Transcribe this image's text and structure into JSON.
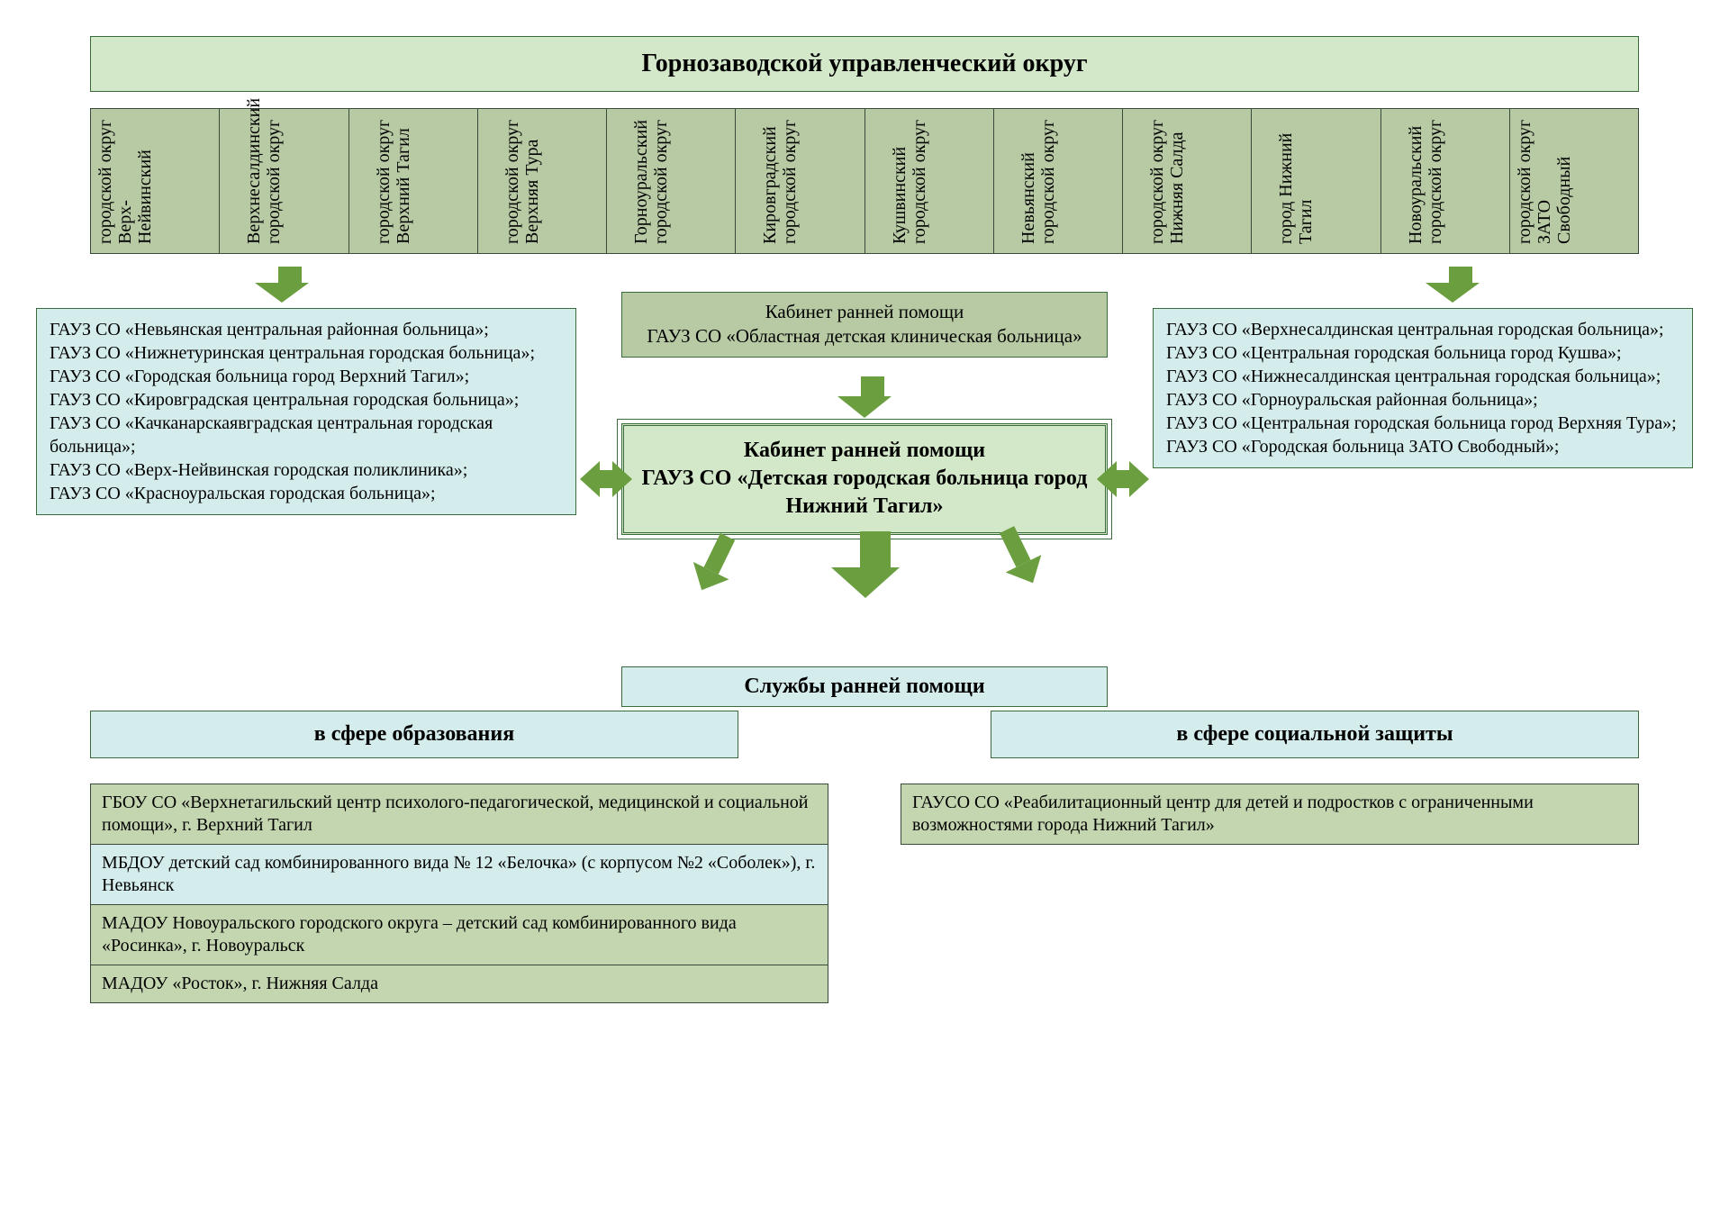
{
  "colors": {
    "title_bg": "#d3e8c9",
    "district_bg": "#b7caa4",
    "hosp_left_bg": "#d4ecec",
    "hosp_right_bg": "#d4ecec",
    "center_top_bg": "#b7caa4",
    "center_main_bg": "#d3e8c9",
    "services_bg": "#d4ecec",
    "sphere_bg": "#d4ecec",
    "row_green": "#c4d6b0",
    "row_blue": "#d4ecec",
    "arrow_fill": "#6a9e3f",
    "border": "#3a6b3a"
  },
  "title": "Горнозаводской управленческий округ",
  "districts": [
    "городской округ Верх-Нейвинский",
    "Верхнесалдинский городской округ",
    "городской округ Верхний Тагил",
    "городской округ Верхняя Тура",
    "Горноуральский городской округ",
    "Кировградский городской округ",
    "Кушвинский городской округ",
    "Невьянский городской округ",
    "городской округ Нижняя Салда",
    "город Нижний Тагил",
    "Новоуральский городской округ",
    "городской округ ЗАТО Свободный"
  ],
  "left_hospitals": "ГАУЗ СО «Невьянская центральная районная больница»;\nГАУЗ СО «Нижнетуринская центральная городская больница»;\nГАУЗ СО «Городская больница город Верхний Тагил»;\nГАУЗ СО «Кировградская центральная городская больница»;\nГАУЗ СО «Качканарскаявградская центральная городская больница»;\nГАУЗ СО «Верх-Нейвинская городская поликлиника»;\nГАУЗ СО «Красноуральская городская больница»;",
  "right_hospitals": "ГАУЗ СО «Верхнесалдинская центральная городская больница»;\nГАУЗ СО «Центральная городская больница город Кушва»;\nГАУЗ СО «Нижнесалдинская центральная городская больница»;\nГАУЗ СО «Горноуральская районная больница»;\nГАУЗ СО «Центральная городская больница город Верхняя Тура»;\nГАУЗ СО «Городская больница ЗАТО Свободный»;",
  "center_top": "Кабинет ранней помощи\nГАУЗ СО «Областная детская клиническая больница»",
  "center_main": "Кабинет ранней помощи\nГАУЗ СО «Детская городская больница город Нижний Тагил»",
  "services_title": "Службы ранней помощи",
  "sphere_left": "в сфере образования",
  "sphere_right": "в сфере социальной защиты",
  "edu_items": [
    {
      "text": "ГБОУ СО «Верхнетагильский центр психолого-педагогической, медицинской и социальной помощи», г. Верхний Тагил",
      "bg": "row_green"
    },
    {
      "text": "МБДОУ детский сад комбинированного вида № 12 «Белочка» (с корпусом №2 «Соболек»), г. Невьянск",
      "bg": "row_blue"
    },
    {
      "text": "МАДОУ Новоуральского городского округа – детский сад комбинированного вида «Росинка», г. Новоуральск",
      "bg": "row_green"
    },
    {
      "text": "МАДОУ «Росток», г. Нижняя Салда",
      "bg": "row_green"
    }
  ],
  "soc_items": [
    {
      "text": "ГАУСО СО «Реабилитационный центр для детей и подростков с ограниченными возможностями города Нижний Тагил»",
      "bg": "row_green"
    }
  ]
}
